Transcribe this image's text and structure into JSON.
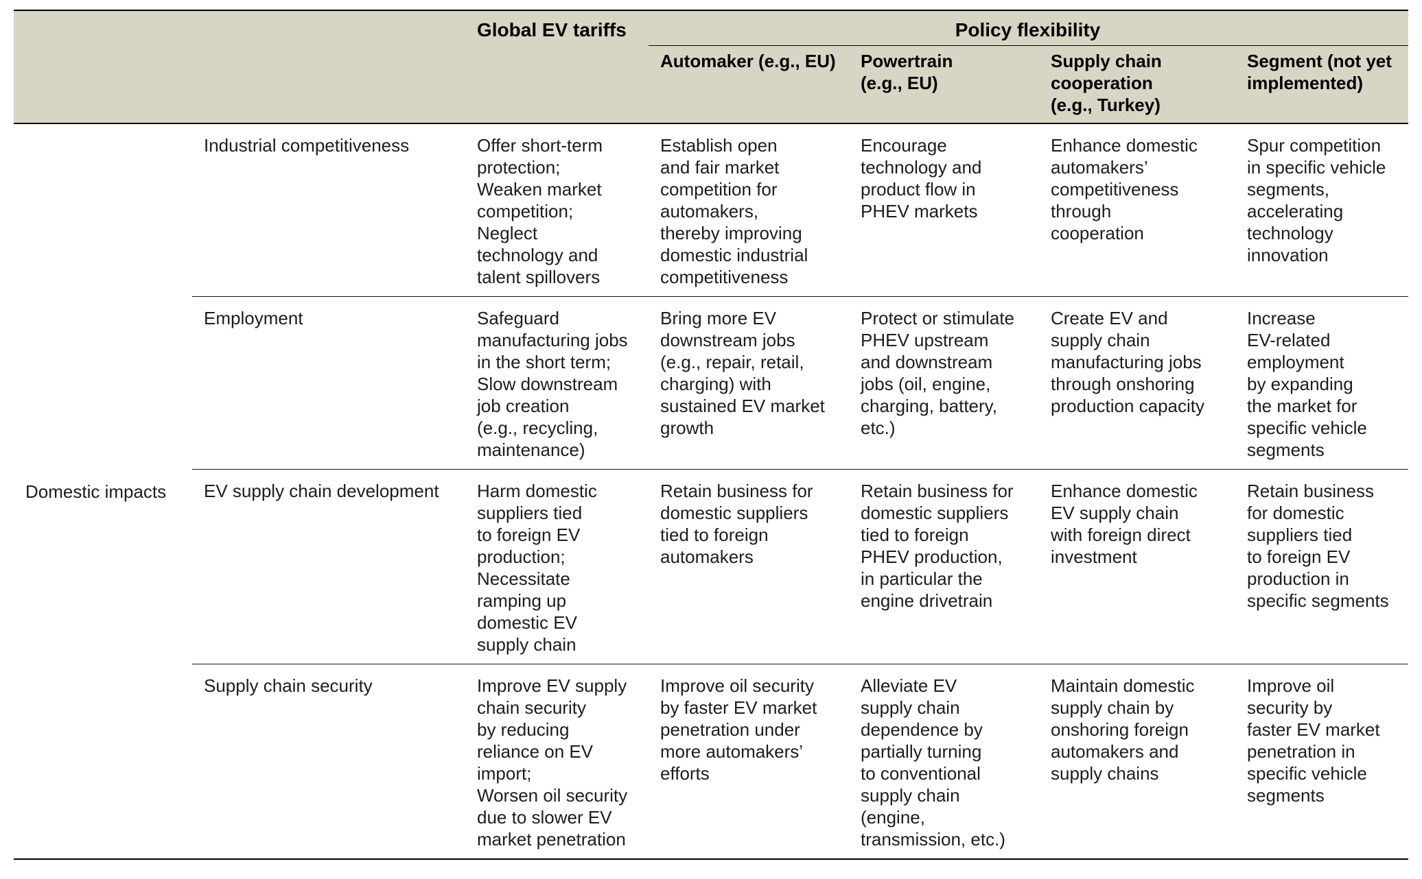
{
  "colors": {
    "header_bg": "#d8d5c4",
    "body_text": "#1d1d1d",
    "rule": "#000000"
  },
  "table": {
    "group_label": "Domestic impacts",
    "spanners": {
      "tariffs": "Global EV tariffs",
      "flexibility": "Policy flexibility"
    },
    "col_headers": {
      "automaker": "Automaker (e.g., EU)",
      "powertrain": "Powertrain\n(e.g., EU)",
      "supply_chain": "Supply chain\ncooperation\n(e.g., Turkey)",
      "segment": "Segment (not yet\nimplemented)"
    },
    "rows": [
      {
        "label": "Industrial competitiveness",
        "tariffs": "Offer short-term\nprotection;\nWeaken market\ncompetition;\nNeglect\ntechnology and\ntalent spillovers",
        "automaker": "Establish open\nand fair market\ncompetition for\nautomakers,\nthereby improving\ndomestic industrial\ncompetitiveness",
        "powertrain": "Encourage\ntechnology and\nproduct flow in\nPHEV markets",
        "supply_chain": "Enhance domestic\nautomakers’\ncompetitiveness\nthrough\ncooperation",
        "segment": "Spur competition\nin specific vehicle\nsegments,\naccelerating\ntechnology\ninnovation"
      },
      {
        "label": "Employment",
        "tariffs": "Safeguard\nmanufacturing jobs\nin the short term;\nSlow downstream\njob creation\n(e.g., recycling,\nmaintenance)",
        "automaker": "Bring more EV\ndownstream jobs\n(e.g., repair, retail,\ncharging) with\nsustained EV market\ngrowth",
        "powertrain": "Protect or stimulate\nPHEV upstream\nand downstream\njobs (oil, engine,\ncharging, battery,\netc.)",
        "supply_chain": "Create EV and\nsupply chain\nmanufacturing jobs\nthrough onshoring\nproduction capacity",
        "segment": "Increase\nEV-related\nemployment\nby expanding\nthe market for\nspecific vehicle\nsegments"
      },
      {
        "label": "EV supply chain development",
        "tariffs": "Harm domestic\nsuppliers tied\nto foreign EV\nproduction;\nNecessitate\nramping up\ndomestic EV\nsupply chain",
        "automaker": "Retain business for\ndomestic suppliers\ntied to foreign\nautomakers",
        "powertrain": "Retain business for\ndomestic suppliers\ntied to foreign\nPHEV production,\nin particular the\nengine drivetrain",
        "supply_chain": "Enhance domestic\nEV supply chain\nwith foreign direct\ninvestment",
        "segment": "Retain business\nfor domestic\nsuppliers tied\nto foreign EV\nproduction in\nspecific segments"
      },
      {
        "label": "Supply chain security",
        "tariffs": "Improve EV supply\nchain security\nby reducing\nreliance on EV\nimport;\nWorsen oil security\ndue to slower EV\nmarket penetration",
        "automaker": "Improve oil security\nby faster EV market\npenetration under\nmore automakers’\nefforts",
        "powertrain": "Alleviate EV\nsupply chain\ndependence by\npartially turning\nto conventional\nsupply chain\n(engine,\ntransmission, etc.)",
        "supply_chain": "Maintain domestic\nsupply chain by\nonshoring foreign\nautomakers and\nsupply chains",
        "segment": "Improve oil\nsecurity by\nfaster EV market\npenetration in\nspecific vehicle\nsegments"
      }
    ]
  }
}
